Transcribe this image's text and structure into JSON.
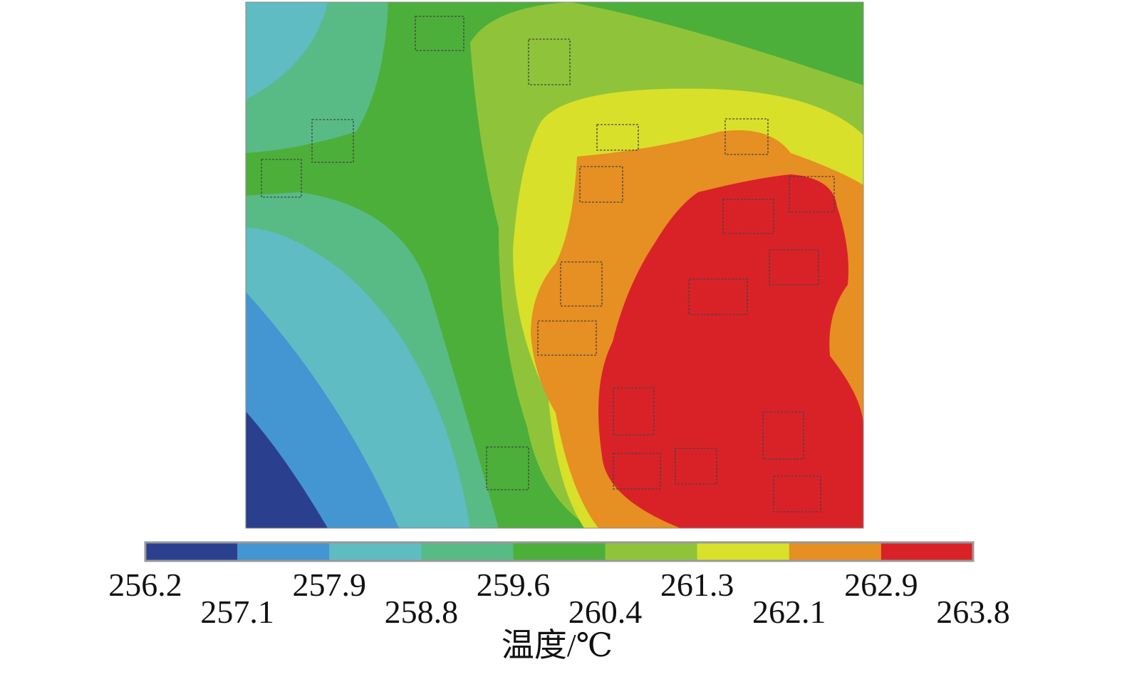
{
  "chart_data": {
    "type": "contour",
    "levels": [
      256.2,
      257.1,
      257.9,
      258.8,
      259.6,
      260.4,
      261.3,
      262.1,
      262.9,
      263.8
    ],
    "colors": [
      "#2b3f8f",
      "#4396d1",
      "#5fbcc2",
      "#58bb86",
      "#4caf3a",
      "#8fc43a",
      "#d9e029",
      "#e68f22",
      "#d92228"
    ],
    "colorbar_label": "温度/℃"
  }
}
